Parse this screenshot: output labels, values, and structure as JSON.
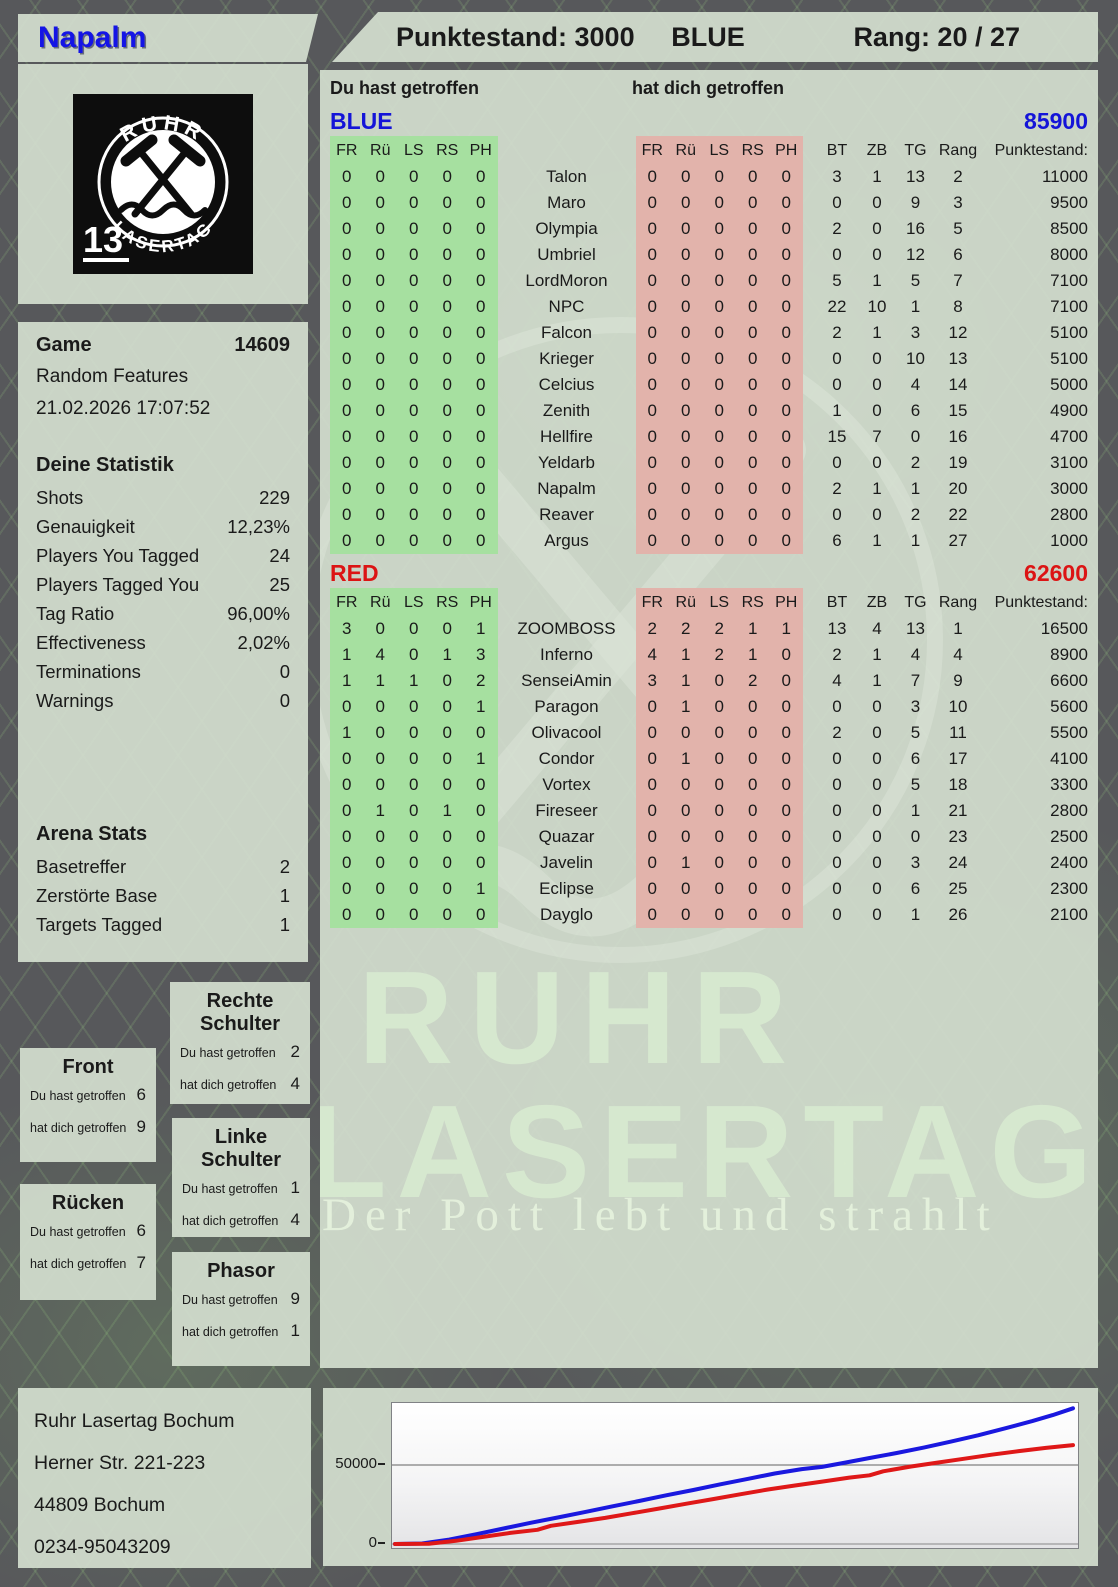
{
  "header": {
    "player_name": "Napalm",
    "score_label": "Punktestand: 3000",
    "team": "BLUE",
    "rank_label": "Rang: 20 / 27"
  },
  "logo": {
    "arc_top": "RUHR",
    "arc_bottom": "LASERTAG",
    "badge": "13"
  },
  "game": {
    "label": "Game",
    "number": "14609",
    "mode": "Random Features",
    "datetime": "21.02.2026 17:07:52"
  },
  "your_stats": {
    "title": "Deine Statistik",
    "rows": [
      {
        "label": "Shots",
        "value": "229"
      },
      {
        "label": "Genauigkeit",
        "value": "12,23%"
      },
      {
        "label": "Players You Tagged",
        "value": "24"
      },
      {
        "label": "Players Tagged You",
        "value": "25"
      },
      {
        "label": "Tag Ratio",
        "value": "96,00%"
      },
      {
        "label": "Effectiveness",
        "value": "2,02%"
      },
      {
        "label": "Terminations",
        "value": "0"
      },
      {
        "label": "Warnings",
        "value": "0"
      }
    ]
  },
  "arena_stats": {
    "title": "Arena Stats",
    "rows": [
      {
        "label": "Basetreffer",
        "value": "2"
      },
      {
        "label": "Zerstörte Base",
        "value": "1"
      },
      {
        "label": "Targets Tagged",
        "value": "1"
      }
    ]
  },
  "hit_boxes": {
    "you_label": "Du hast getroffen",
    "them_label": "hat dich getroffen",
    "boxes": [
      {
        "id": "front",
        "title": "Front",
        "you": "6",
        "them": "9"
      },
      {
        "id": "ruecken",
        "title": "Rücken",
        "you": "6",
        "them": "7"
      },
      {
        "id": "rechte",
        "title": "Rechte Schulter",
        "you": "2",
        "them": "4"
      },
      {
        "id": "linke",
        "title": "Linke Schulter",
        "you": "1",
        "them": "4"
      },
      {
        "id": "phasor",
        "title": "Phasor",
        "you": "9",
        "them": "1"
      }
    ]
  },
  "scoreboard": {
    "you_header": "Du hast getroffen",
    "them_header": "hat dich getroffen",
    "hit_cols": [
      "FR",
      "Rü",
      "LS",
      "RS",
      "PH"
    ],
    "stat_cols": [
      "BT",
      "ZB",
      "TG",
      "Rang",
      "Punktestand:"
    ],
    "teams": [
      {
        "name": "BLUE",
        "score": "85900",
        "color": "#1414d8",
        "rows": [
          {
            "player": "Talon",
            "you": [
              0,
              0,
              0,
              0,
              0
            ],
            "them": [
              0,
              0,
              0,
              0,
              0
            ],
            "bt": 3,
            "zb": 1,
            "tg": 13,
            "rang": 2,
            "punkte": 11000
          },
          {
            "player": "Maro",
            "you": [
              0,
              0,
              0,
              0,
              0
            ],
            "them": [
              0,
              0,
              0,
              0,
              0
            ],
            "bt": 0,
            "zb": 0,
            "tg": 9,
            "rang": 3,
            "punkte": 9500
          },
          {
            "player": "Olympia",
            "you": [
              0,
              0,
              0,
              0,
              0
            ],
            "them": [
              0,
              0,
              0,
              0,
              0
            ],
            "bt": 2,
            "zb": 0,
            "tg": 16,
            "rang": 5,
            "punkte": 8500
          },
          {
            "player": "Umbriel",
            "you": [
              0,
              0,
              0,
              0,
              0
            ],
            "them": [
              0,
              0,
              0,
              0,
              0
            ],
            "bt": 0,
            "zb": 0,
            "tg": 12,
            "rang": 6,
            "punkte": 8000
          },
          {
            "player": "LordMoron",
            "you": [
              0,
              0,
              0,
              0,
              0
            ],
            "them": [
              0,
              0,
              0,
              0,
              0
            ],
            "bt": 5,
            "zb": 1,
            "tg": 5,
            "rang": 7,
            "punkte": 7100
          },
          {
            "player": "NPC",
            "you": [
              0,
              0,
              0,
              0,
              0
            ],
            "them": [
              0,
              0,
              0,
              0,
              0
            ],
            "bt": 22,
            "zb": 10,
            "tg": 1,
            "rang": 8,
            "punkte": 7100
          },
          {
            "player": "Falcon",
            "you": [
              0,
              0,
              0,
              0,
              0
            ],
            "them": [
              0,
              0,
              0,
              0,
              0
            ],
            "bt": 2,
            "zb": 1,
            "tg": 3,
            "rang": 12,
            "punkte": 5100
          },
          {
            "player": "Krieger",
            "you": [
              0,
              0,
              0,
              0,
              0
            ],
            "them": [
              0,
              0,
              0,
              0,
              0
            ],
            "bt": 0,
            "zb": 0,
            "tg": 10,
            "rang": 13,
            "punkte": 5100
          },
          {
            "player": "Celcius",
            "you": [
              0,
              0,
              0,
              0,
              0
            ],
            "them": [
              0,
              0,
              0,
              0,
              0
            ],
            "bt": 0,
            "zb": 0,
            "tg": 4,
            "rang": 14,
            "punkte": 5000
          },
          {
            "player": "Zenith",
            "you": [
              0,
              0,
              0,
              0,
              0
            ],
            "them": [
              0,
              0,
              0,
              0,
              0
            ],
            "bt": 1,
            "zb": 0,
            "tg": 6,
            "rang": 15,
            "punkte": 4900
          },
          {
            "player": "Hellfire",
            "you": [
              0,
              0,
              0,
              0,
              0
            ],
            "them": [
              0,
              0,
              0,
              0,
              0
            ],
            "bt": 15,
            "zb": 7,
            "tg": 0,
            "rang": 16,
            "punkte": 4700
          },
          {
            "player": "Yeldarb",
            "you": [
              0,
              0,
              0,
              0,
              0
            ],
            "them": [
              0,
              0,
              0,
              0,
              0
            ],
            "bt": 0,
            "zb": 0,
            "tg": 2,
            "rang": 19,
            "punkte": 3100
          },
          {
            "player": "Napalm",
            "you": [
              0,
              0,
              0,
              0,
              0
            ],
            "them": [
              0,
              0,
              0,
              0,
              0
            ],
            "bt": 2,
            "zb": 1,
            "tg": 1,
            "rang": 20,
            "punkte": 3000
          },
          {
            "player": "Reaver",
            "you": [
              0,
              0,
              0,
              0,
              0
            ],
            "them": [
              0,
              0,
              0,
              0,
              0
            ],
            "bt": 0,
            "zb": 0,
            "tg": 2,
            "rang": 22,
            "punkte": 2800
          },
          {
            "player": "Argus",
            "you": [
              0,
              0,
              0,
              0,
              0
            ],
            "them": [
              0,
              0,
              0,
              0,
              0
            ],
            "bt": 6,
            "zb": 1,
            "tg": 1,
            "rang": 27,
            "punkte": 1000
          }
        ]
      },
      {
        "name": "RED",
        "score": "62600",
        "color": "#dc1414",
        "rows": [
          {
            "player": "ZOOMBOSS",
            "you": [
              3,
              0,
              0,
              0,
              1
            ],
            "them": [
              2,
              2,
              2,
              1,
              1
            ],
            "bt": 13,
            "zb": 4,
            "tg": 13,
            "rang": 1,
            "punkte": 16500
          },
          {
            "player": "Inferno",
            "you": [
              1,
              4,
              0,
              1,
              3
            ],
            "them": [
              4,
              1,
              2,
              1,
              0
            ],
            "bt": 2,
            "zb": 1,
            "tg": 4,
            "rang": 4,
            "punkte": 8900
          },
          {
            "player": "SenseiAmin",
            "you": [
              1,
              1,
              1,
              0,
              2
            ],
            "them": [
              3,
              1,
              0,
              2,
              0
            ],
            "bt": 4,
            "zb": 1,
            "tg": 7,
            "rang": 9,
            "punkte": 6600
          },
          {
            "player": "Paragon",
            "you": [
              0,
              0,
              0,
              0,
              1
            ],
            "them": [
              0,
              1,
              0,
              0,
              0
            ],
            "bt": 0,
            "zb": 0,
            "tg": 3,
            "rang": 10,
            "punkte": 5600
          },
          {
            "player": "Olivacool",
            "you": [
              1,
              0,
              0,
              0,
              0
            ],
            "them": [
              0,
              0,
              0,
              0,
              0
            ],
            "bt": 2,
            "zb": 0,
            "tg": 5,
            "rang": 11,
            "punkte": 5500
          },
          {
            "player": "Condor",
            "you": [
              0,
              0,
              0,
              0,
              1
            ],
            "them": [
              0,
              1,
              0,
              0,
              0
            ],
            "bt": 0,
            "zb": 0,
            "tg": 6,
            "rang": 17,
            "punkte": 4100
          },
          {
            "player": "Vortex",
            "you": [
              0,
              0,
              0,
              0,
              0
            ],
            "them": [
              0,
              0,
              0,
              0,
              0
            ],
            "bt": 0,
            "zb": 0,
            "tg": 5,
            "rang": 18,
            "punkte": 3300
          },
          {
            "player": "Fireseer",
            "you": [
              0,
              1,
              0,
              1,
              0
            ],
            "them": [
              0,
              0,
              0,
              0,
              0
            ],
            "bt": 0,
            "zb": 0,
            "tg": 1,
            "rang": 21,
            "punkte": 2800
          },
          {
            "player": "Quazar",
            "you": [
              0,
              0,
              0,
              0,
              0
            ],
            "them": [
              0,
              0,
              0,
              0,
              0
            ],
            "bt": 0,
            "zb": 0,
            "tg": 0,
            "rang": 23,
            "punkte": 2500
          },
          {
            "player": "Javelin",
            "you": [
              0,
              0,
              0,
              0,
              0
            ],
            "them": [
              0,
              1,
              0,
              0,
              0
            ],
            "bt": 0,
            "zb": 0,
            "tg": 3,
            "rang": 24,
            "punkte": 2400
          },
          {
            "player": "Eclipse",
            "you": [
              0,
              0,
              0,
              0,
              1
            ],
            "them": [
              0,
              0,
              0,
              0,
              0
            ],
            "bt": 0,
            "zb": 0,
            "tg": 6,
            "rang": 25,
            "punkte": 2300
          },
          {
            "player": "Dayglo",
            "you": [
              0,
              0,
              0,
              0,
              0
            ],
            "them": [
              0,
              0,
              0,
              0,
              0
            ],
            "bt": 0,
            "zb": 0,
            "tg": 1,
            "rang": 26,
            "punkte": 2100
          }
        ]
      }
    ]
  },
  "watermark": {
    "line1": "RUHR",
    "line2": "LASERTAG",
    "slogan": "Der Pott lebt und strahlt"
  },
  "address": {
    "lines": [
      "Ruhr Lasertag Bochum",
      "Herner Str. 221-223",
      "44809 Bochum",
      "0234-95043209"
    ]
  },
  "chart_data": {
    "type": "line",
    "title": "",
    "xlabel": "",
    "ylabel": "",
    "x_meaning": "game time progression (no tick labels shown)",
    "ylim": [
      0,
      88000
    ],
    "ytick_labels": [
      "0",
      "50000"
    ],
    "ytick_values": [
      0,
      50000
    ],
    "grid": "horizontal line at 50000",
    "legend_position": "none",
    "series": [
      {
        "name": "BLUE team score",
        "color": "#1a18df",
        "end_value": 85900,
        "points": [
          [
            0,
            0
          ],
          [
            0.04,
            300
          ],
          [
            0.08,
            2800
          ],
          [
            0.12,
            6200
          ],
          [
            0.16,
            9800
          ],
          [
            0.2,
            13400
          ],
          [
            0.24,
            16800
          ],
          [
            0.28,
            20200
          ],
          [
            0.32,
            23800
          ],
          [
            0.36,
            27200
          ],
          [
            0.4,
            30800
          ],
          [
            0.44,
            34200
          ],
          [
            0.48,
            37800
          ],
          [
            0.52,
            41200
          ],
          [
            0.56,
            44600
          ],
          [
            0.6,
            47400
          ],
          [
            0.63,
            48800
          ],
          [
            0.66,
            51200
          ],
          [
            0.7,
            54400
          ],
          [
            0.74,
            57600
          ],
          [
            0.78,
            61000
          ],
          [
            0.82,
            64800
          ],
          [
            0.86,
            68800
          ],
          [
            0.9,
            73200
          ],
          [
            0.94,
            77800
          ],
          [
            0.97,
            81600
          ],
          [
            1,
            85900
          ]
        ]
      },
      {
        "name": "RED team score",
        "color": "#df1818",
        "end_value": 62600,
        "points": [
          [
            0,
            0
          ],
          [
            0.05,
            200
          ],
          [
            0.09,
            2000
          ],
          [
            0.13,
            4500
          ],
          [
            0.17,
            7000
          ],
          [
            0.21,
            9000
          ],
          [
            0.23,
            11500
          ],
          [
            0.27,
            14000
          ],
          [
            0.31,
            16500
          ],
          [
            0.35,
            19500
          ],
          [
            0.39,
            22500
          ],
          [
            0.43,
            25500
          ],
          [
            0.47,
            28500
          ],
          [
            0.51,
            31500
          ],
          [
            0.55,
            34500
          ],
          [
            0.59,
            37000
          ],
          [
            0.63,
            39500
          ],
          [
            0.67,
            42000
          ],
          [
            0.7,
            43500
          ],
          [
            0.72,
            46000
          ],
          [
            0.76,
            49000
          ],
          [
            0.8,
            51500
          ],
          [
            0.84,
            54000
          ],
          [
            0.88,
            56500
          ],
          [
            0.92,
            58800
          ],
          [
            0.96,
            60800
          ],
          [
            1,
            62600
          ]
        ]
      }
    ],
    "colors": {
      "blue_line": "#1a18df",
      "red_line": "#df1818",
      "gridline": "#808080"
    }
  },
  "ui_colors": {
    "background": "#57585b",
    "panel": "#d3ded0",
    "green_cells": "#a6e0a0",
    "red_cells": "#e2b3ab",
    "blue_accent": "#1414d8",
    "red_accent": "#dc1414"
  }
}
